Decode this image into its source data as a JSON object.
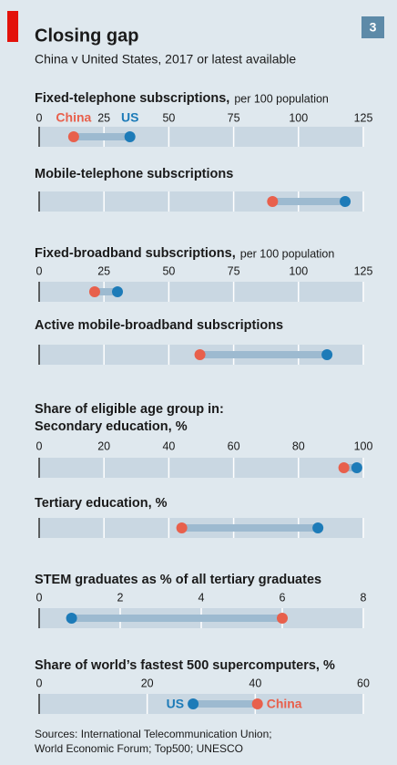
{
  "header": {
    "title": "Closing gap",
    "subtitle": "China v United States, 2017 or latest available",
    "badge": "3"
  },
  "chart_data": [
    {
      "type": "dumbbell",
      "title": "Fixed-telephone subscriptions,",
      "unit": "per 100 population",
      "xlim": [
        0,
        125
      ],
      "xticks": [
        0,
        25,
        50,
        75,
        100,
        125
      ],
      "show_tick_labels": true,
      "series": [
        {
          "name": "China",
          "color": "#e8604c",
          "values": [
            13.3
          ]
        },
        {
          "name": "US",
          "color": "#1d7bb8",
          "values": [
            35
          ]
        }
      ]
    },
    {
      "type": "dumbbell",
      "title": "Mobile-telephone subscriptions",
      "xlim": [
        0,
        125
      ],
      "xticks": [
        0,
        25,
        50,
        75,
        100,
        125
      ],
      "show_tick_labels": false,
      "series": [
        {
          "color": "#e8604c",
          "values": [
            90
          ]
        },
        {
          "color": "#1d7bb8",
          "values": [
            118
          ]
        }
      ]
    },
    {
      "type": "dumbbell",
      "title": "Fixed-broadband subscriptions,",
      "unit": "per 100 population",
      "xlim": [
        0,
        125
      ],
      "xticks": [
        0,
        25,
        50,
        75,
        100,
        125
      ],
      "show_tick_labels": true,
      "series": [
        {
          "color": "#e8604c",
          "values": [
            21.4
          ]
        },
        {
          "color": "#1d7bb8",
          "values": [
            30.2
          ]
        }
      ]
    },
    {
      "type": "dumbbell",
      "title": "Active mobile-broadband subscriptions",
      "xlim": [
        0,
        125
      ],
      "xticks": [
        0,
        25,
        50,
        75,
        100,
        125
      ],
      "show_tick_labels": false,
      "series": [
        {
          "color": "#e8604c",
          "values": [
            62
          ]
        },
        {
          "color": "#1d7bb8",
          "values": [
            111
          ]
        }
      ]
    },
    {
      "type": "dumbbell",
      "heading": "Share of eligible age group in:",
      "title": "Secondary education, %",
      "xlim": [
        0,
        100
      ],
      "xticks": [
        0,
        20,
        40,
        60,
        80,
        100
      ],
      "show_tick_labels": true,
      "series": [
        {
          "color": "#e8604c",
          "values": [
            94
          ]
        },
        {
          "color": "#1d7bb8",
          "values": [
            98
          ]
        }
      ]
    },
    {
      "type": "dumbbell",
      "title": "Tertiary education, %",
      "xlim": [
        0,
        100
      ],
      "xticks": [
        0,
        20,
        40,
        60,
        80,
        100
      ],
      "show_tick_labels": false,
      "series": [
        {
          "color": "#e8604c",
          "values": [
            44
          ]
        },
        {
          "color": "#1d7bb8",
          "values": [
            86
          ]
        }
      ]
    },
    {
      "type": "dumbbell",
      "title": "STEM graduates as % of all tertiary graduates",
      "xlim": [
        0,
        8
      ],
      "xticks": [
        0,
        2,
        4,
        6,
        8
      ],
      "show_tick_labels": true,
      "series": [
        {
          "color": "#e8604c",
          "values": [
            6
          ]
        },
        {
          "color": "#1d7bb8",
          "values": [
            0.8
          ]
        }
      ]
    },
    {
      "type": "dumbbell",
      "title": "Share of world’s fastest 500 supercomputers, %",
      "xlim": [
        0,
        60
      ],
      "xticks": [
        0,
        20,
        40,
        60
      ],
      "show_tick_labels": true,
      "labels_inside": true,
      "series": [
        {
          "name": "US",
          "color": "#1d7bb8",
          "values": [
            28.5
          ]
        },
        {
          "name": "China",
          "color": "#e8604c",
          "values": [
            40.4
          ]
        }
      ]
    }
  ],
  "source": [
    "Sources: International Telecommunication Union;",
    "World Economic Forum; Top500; UNESCO"
  ]
}
